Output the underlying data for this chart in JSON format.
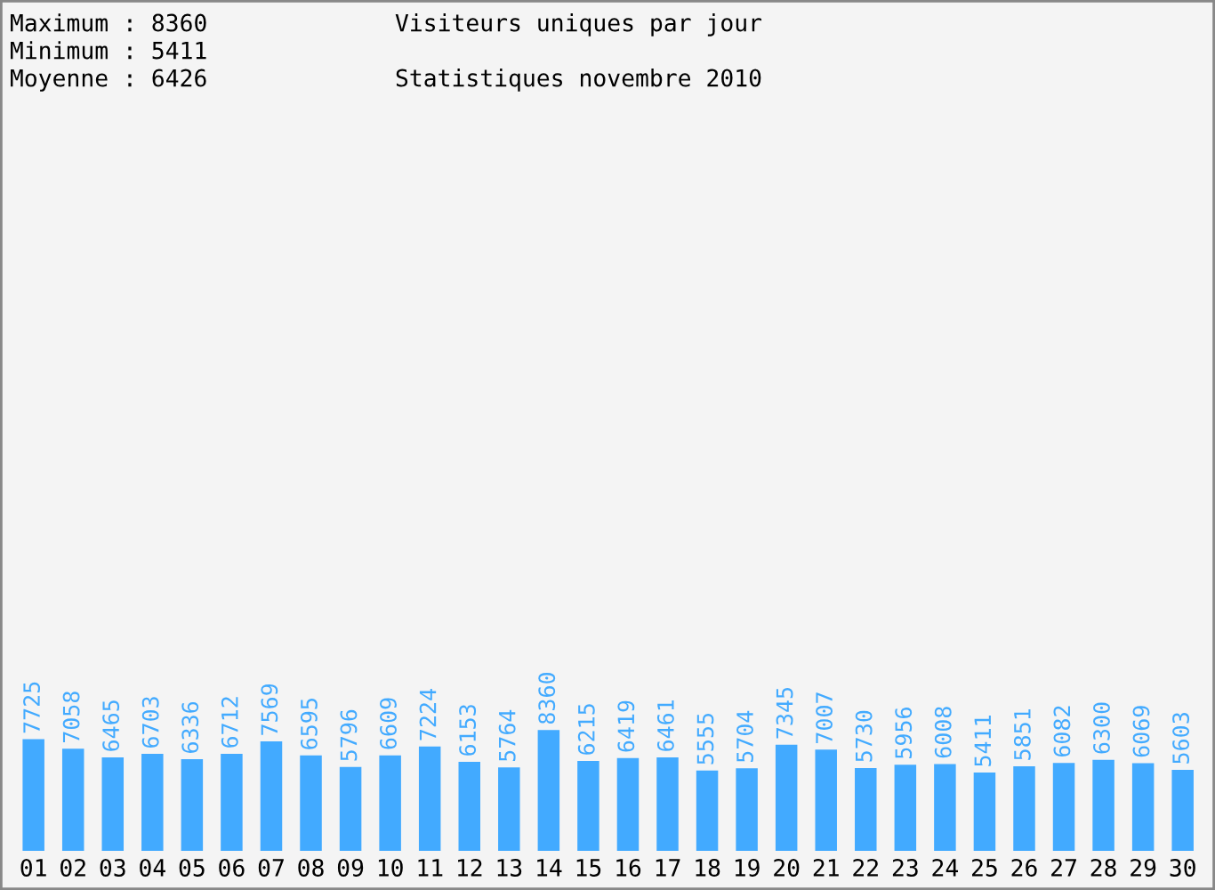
{
  "chart_data": {
    "type": "bar",
    "title": "Visiteurs uniques par jour",
    "subtitle": "Statistiques novembre 2010",
    "annotations": [
      "Maximum : 8360",
      "Minimum : 5411",
      "Moyenne : 6426"
    ],
    "categories": [
      "01",
      "02",
      "03",
      "04",
      "05",
      "06",
      "07",
      "08",
      "09",
      "10",
      "11",
      "12",
      "13",
      "14",
      "15",
      "16",
      "17",
      "18",
      "19",
      "20",
      "21",
      "22",
      "23",
      "24",
      "25",
      "26",
      "27",
      "28",
      "29",
      "30"
    ],
    "values": [
      7725,
      7058,
      6465,
      6703,
      6336,
      6712,
      7569,
      6595,
      5796,
      6609,
      7224,
      6153,
      5764,
      8360,
      6215,
      6419,
      6461,
      5555,
      5704,
      7345,
      7007,
      5730,
      5956,
      6008,
      5411,
      5851,
      6082,
      6300,
      6069,
      5603
    ],
    "color": "#42aaff",
    "data_labels": true,
    "grid": false,
    "legend": false
  }
}
